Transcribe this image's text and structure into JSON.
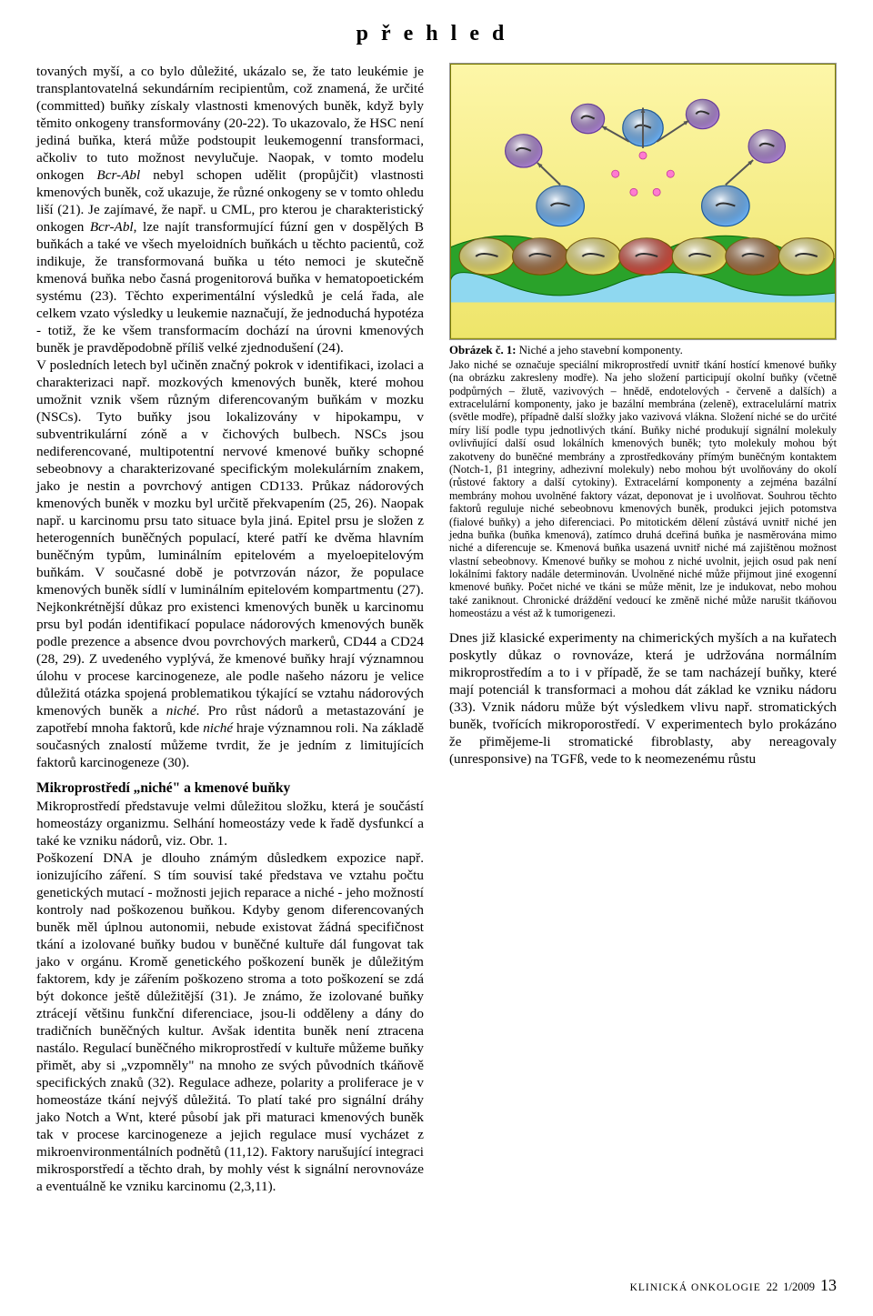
{
  "header": {
    "title": "přehled"
  },
  "body": {
    "para1_html": "tovaných myší, a co bylo důležité, ukázalo se, že tato leukémie je transplantovatelná sekundárním recipientům, což znamená, že určité (committed) buňky získaly vlastnosti kmenových buněk, když byly těmito onkogeny transformovány (20-22). To ukazovalo, že HSC není jediná buňka, která může podstoupit leukemogenní transformaci, ačkoliv to tuto možnost nevylučuje. Naopak, v tomto modelu onkogen <i>Bcr-Abl</i> nebyl schopen udělit (propůjčit) vlastnosti kmenových buněk, což ukazuje, že různé onkogeny se v tomto ohledu liší (21). Je zajímavé, že např. u CML, pro kterou je charakteristický onkogen <i>Bcr-Abl</i>, lze najít transformující fúzní gen v dospělých B buňkách a také ve všech myeloidních buňkách u těchto pacientů, což indikuje, že transformovaná buňka u této nemoci je skutečně kmenová buňka nebo časná progenitorová buňka v hematopoetickém systému (23). Těchto experimentální výsledků je celá řada, ale celkem vzato výsledky u leukemie naznačují, že jednoduchá hypotéza - totiž, že ke všem transformacím dochází na úrovni kmenových buněk je pravděpodobně příliš velké zjednodušení (24).",
    "para2_html": "V posledních letech byl učiněn značný pokrok v identifikaci, izolaci a charakterizaci např. mozkových kmenových buněk, které mohou umožnit vznik všem různým diferencovaným buňkám v mozku (NSCs). Tyto buňky jsou lokalizovány v hipokampu, v subventrikulární zóně a v čichových bulbech. NSCs jsou nediferencované, multipotentní nervové kmenové buňky schopné sebeobnovy a charakterizované specifickým molekulárním znakem, jako je nestin a povrchový antigen CD133. Průkaz nádorových kmenových buněk v mozku byl určitě překvapením (25, 26). Naopak např. u karcinomu prsu tato situace byla jiná. Epitel prsu je složen z heterogenních buněčných populací, které patří ke dvěma hlavním buněčným typům, luminálním epitelovém a myeloepitelovým buňkám. V současné době je potvrzován názor, že populace kmenových buněk sídlí v luminálním epitelovém kompartmentu (27). Nejkonkrétnější důkaz pro existenci kmenových buněk u karcinomu prsu byl podán identifikací populace nádorových kmenových buněk podle prezence a absence dvou povrchových markerů, CD44 a CD24 (28, 29). Z uvedeného vyplývá, že kmenové buňky hrají významnou úlohu v procese karcinogeneze, ale podle našeho názoru je velice důležitá otázka spojená problematikou týkající se vztahu nádorových kmenových buněk a <i>niché</i>. Pro růst nádorů a metastazování je zapotřebí mnoha faktorů, kde <i>niché</i> hraje významnou roli. Na základě současných znalostí můžeme tvrdit, že je jedním z limitujících faktorů karcinogeneze (30).",
    "subhead": "Mikroprostředí „niché\" a kmenové buňky",
    "para3_html": "Mikroprostředí představuje velmi důležitou složku, která je součástí homeostázy organizmu. Selhání homeostázy vede k řadě dysfunkcí a také ke vzniku nádorů, viz. Obr. 1.",
    "para4_html": "Poškození DNA je dlouho známým důsledkem expozice např. ionizujícího záření. S tím souvisí také představa ve vztahu počtu genetických mutací - možnosti jejich reparace a niché - jeho možností kontroly nad poškozenou buňkou. Kdyby genom diferencovaných buněk měl úplnou autonomii, nebude existovat žádná specifičnost tkání a izolované buňky budou v buněčné kultuře dál fungovat tak jako v orgánu. Kromě genetického poškození buněk je důležitým faktorem, kdy je zářením poškozeno stroma a toto poškození se zdá být dokonce ještě důležitější (31). Je známo, že izolované buňky ztrácejí většinu funkční diferenciace, jsou-li odděleny a dány do tradičních buněčných kultur. Avšak identita buněk není ztracena nastálo. Regulací buněčného mikroprostředí v kultuře můžeme buňky přimět, aby si „vzpomněly\" na mnoho ze svých původních tkáňově specifických znaků (32). Regulace adheze, polarity a proliferace je v homeostáze tkání nejvýš důležitá. To platí také pro signální dráhy jako Notch a Wnt, které působí jak při maturaci kmenových buněk tak v procese karcinogeneze a jejich regulace musí vycházet z mikroenvironmentálních podnětů (11,12). Faktory narušující integraci mikrosporstředí a těchto drah, by mohly vést k signální nerovnováze a eventuálně ke vzniku karcinomu (2,3,11).",
    "para5_html": "Dnes již klasické experimenty na chimerických myších a na kuřatech poskytly důkaz o rovnováze, která je udržována normálním mikroprostředím a to i v případě, že se tam nacházejí buňky, které mají potenciál k transformaci a mohou dát základ ke vzniku nádoru (33). Vznik nádoru může být výsledkem vlivu např. stromatických buněk, tvořících mikroporostředí. V experimentech bylo prokázáno že přimějeme-li stromatické fibroblasty, aby nereagovaly (unresponsive) na TGFß, vede to k neomezenému růstu"
  },
  "figure": {
    "colors": {
      "border": "#7a7a00",
      "bg_top": "#fdf6a8",
      "bg_bottom": "#eee56a",
      "membrane": "#2aa22a",
      "matrix": "#8fd8f0",
      "stem_fill": "#6fb8ff",
      "stem_stroke": "#1a5aa0",
      "niche_fill_y": "#f7e96a",
      "niche_fill_br": "#a86e3a",
      "niche_fill_r": "#d94a3a",
      "progeny_fill": "#b186d9",
      "progeny_stroke": "#6a3da0",
      "nucleus": "#303030",
      "arrow": "#555555",
      "dot_pink": "#ff7bd0"
    },
    "caption_title_html": "<b>Obrázek č. 1:</b> Niché a jeho stavební komponenty.",
    "caption_body_html": "Jako niché se označuje speciální mikroprostředí uvnitř tkání hostící kmenové buňky (na obrázku zakresleny modře). Na jeho složení participují okolní buňky (včetně podpůrných – žlutě, vazivových – hnědě, endotelových - červeně a dalších) a extracelulární komponenty, jako je bazální membrána (zeleně), extracelulární matrix (světle modře), případně další složky jako vazivová vlákna. Složení niché se do určité míry liší podle typu jednotlivých tkání. Buňky niché produkují signální molekuly ovlivňující další osud lokálních kmenových buněk; tyto molekuly mohou být zakotveny do buněčné membrány a zprostředkovány přímým buněčným kontaktem (Notch-1, β1 integriny, adhezivní molekuly) nebo mohou být uvolňovány do okolí (růstové faktory a další cytokiny). Extracelární komponenty a zejména bazální membrány mohou uvolněné faktory vázat, deponovat je i uvolňovat. Souhrou těchto faktorů reguluje niché sebeobnovu kmenových buněk, produkci jejich potomstva (fialové buňky) a jeho diferenciaci. Po mitotickém dělení zůstává uvnitř niché jen jedna buňka (buňka kmenová), zatímco druhá dceřiná buňka je nasměrována mimo niché a diferencuje se. Kmenová buňka usazená uvnitř niché má zajištěnou možnost vlastní sebeobnovy. Kmenové buňky se mohou z niché uvolnit, jejich osud pak není lokálními faktory nadále determinován. Uvolněné niché může přijmout jiné exogenní kmenové buňky. Počet niché ve tkáni se může měnit, lze je indukovat, nebo mohou také zaniknout. Chronické dráždění vedoucí ke změně niché může narušit tkáňovou homeostázu a vést až k tumorigenezi."
  },
  "footer": {
    "journal": "KLINICKÁ ONKOLOGIE",
    "vol": "22",
    "issue_year": "1/2009",
    "page": "13"
  }
}
